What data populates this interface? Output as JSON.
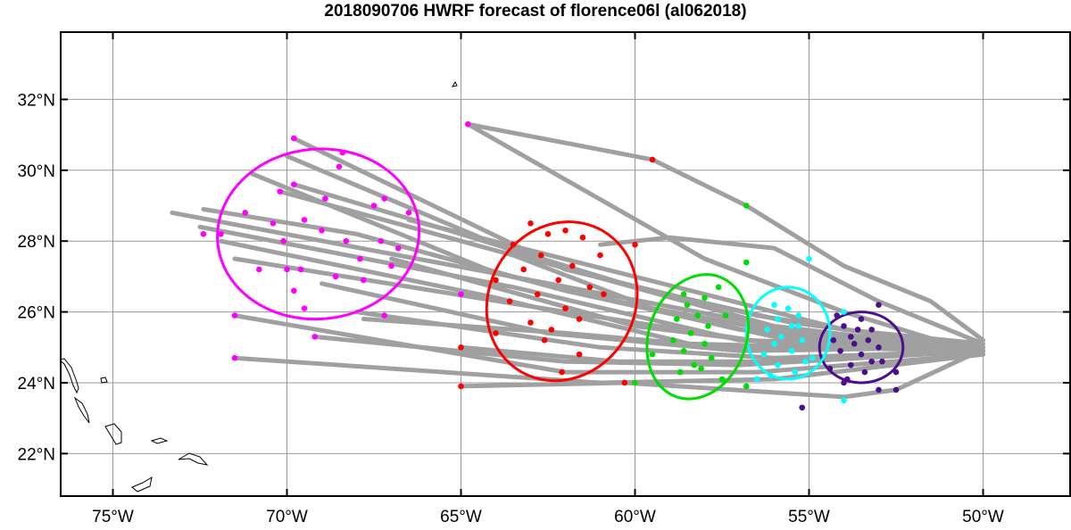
{
  "title": "2018090706 HWRF forecast of florence06l (al062018)",
  "map": {
    "lon_range": [
      -76.5,
      -47.5
    ],
    "lat_range": [
      20.8,
      33.9
    ],
    "grid_lons": [
      -75,
      -70,
      -65,
      -60,
      -55,
      -50
    ],
    "grid_lats": [
      22,
      24,
      26,
      28,
      30,
      32
    ],
    "x_tick_labels": [
      "75°W",
      "70°W",
      "65°W",
      "60°W",
      "55°W",
      "50°W"
    ],
    "y_tick_labels": [
      "22°N",
      "24°N",
      "26°N",
      "28°N",
      "30°N",
      "32°N"
    ],
    "colors": {
      "track": "#a0a0a0",
      "grid": "#999999",
      "coast": "#000000",
      "day1": "#4b0f8c",
      "day2": "#00ffff",
      "day3": "#00dd00",
      "day4": "#ff0000",
      "day5": "#ff00ff"
    }
  },
  "chart_data": {
    "type": "scatter",
    "description_units": "longitude (deg, negative = W), latitude (deg N)",
    "ellipses": [
      {
        "name": "day1",
        "color": "#4b0f8c",
        "center": [
          -53.5,
          25.0
        ],
        "radii": [
          1.2,
          1.0
        ],
        "angle": 0
      },
      {
        "name": "day2",
        "color": "#00ffff",
        "center": [
          -55.6,
          25.4
        ],
        "radii": [
          1.2,
          1.3
        ],
        "angle": 0
      },
      {
        "name": "day3",
        "color": "#00dd00",
        "center": [
          -58.2,
          25.3
        ],
        "radii": [
          1.4,
          1.8
        ],
        "angle": 20
      },
      {
        "name": "day4",
        "color": "#ff0000",
        "center": [
          -62.1,
          26.3
        ],
        "radii": [
          2.1,
          2.3
        ],
        "angle": 30
      },
      {
        "name": "day5",
        "color": "#ff00ff",
        "center": [
          -69.1,
          28.2
        ],
        "radii": [
          2.9,
          2.4
        ],
        "angle": -5
      }
    ],
    "tracks": [
      [
        [
          -50.0,
          24.8
        ],
        [
          -54.0,
          26.0
        ],
        [
          -58.0,
          27.5
        ],
        [
          -64.8,
          31.3
        ]
      ],
      [
        [
          -50.0,
          24.9
        ],
        [
          -56.5,
          25.9
        ],
        [
          -62.0,
          27.2
        ],
        [
          -69.8,
          30.9
        ]
      ],
      [
        [
          -50.0,
          24.9
        ],
        [
          -56.0,
          25.6
        ],
        [
          -63.0,
          27.5
        ],
        [
          -70.0,
          30.4
        ]
      ],
      [
        [
          -50.0,
          24.9
        ],
        [
          -57.0,
          25.5
        ],
        [
          -64.0,
          27.1
        ],
        [
          -71.0,
          29.9
        ]
      ],
      [
        [
          -50.0,
          24.9
        ],
        [
          -55.0,
          25.4
        ],
        [
          -63.0,
          26.9
        ],
        [
          -73.3,
          28.8
        ]
      ],
      [
        [
          -50.0,
          25.0
        ],
        [
          -57.0,
          25.2
        ],
        [
          -63.5,
          26.7
        ],
        [
          -72.5,
          28.4
        ]
      ],
      [
        [
          -50.0,
          25.0
        ],
        [
          -58.0,
          25.0
        ],
        [
          -64.0,
          26.4
        ],
        [
          -71.9,
          28.0
        ]
      ],
      [
        [
          -50.0,
          25.0
        ],
        [
          -56.0,
          25.1
        ],
        [
          -62.0,
          26.0
        ],
        [
          -71.5,
          27.5
        ]
      ],
      [
        [
          -50.0,
          25.0
        ],
        [
          -57.0,
          24.9
        ],
        [
          -62.5,
          25.4
        ],
        [
          -69.0,
          26.8
        ]
      ],
      [
        [
          -50.0,
          24.9
        ],
        [
          -56.0,
          24.7
        ],
        [
          -61.0,
          25.0
        ],
        [
          -68.0,
          26.0
        ]
      ],
      [
        [
          -50.0,
          24.9
        ],
        [
          -57.0,
          24.5
        ],
        [
          -62.0,
          24.6
        ],
        [
          -69.2,
          25.3
        ]
      ],
      [
        [
          -50.0,
          24.8
        ],
        [
          -56.5,
          24.3
        ],
        [
          -62.0,
          24.3
        ],
        [
          -71.5,
          25.9
        ]
      ],
      [
        [
          -50.0,
          24.8
        ],
        [
          -56.0,
          24.1
        ],
        [
          -61.0,
          24.0
        ],
        [
          -71.5,
          24.7
        ]
      ],
      [
        [
          -50.1,
          24.9
        ],
        [
          -52.5,
          23.8
        ],
        [
          -54.0,
          23.6
        ],
        [
          -60.3,
          24.0
        ],
        [
          -65.0,
          23.9
        ]
      ],
      [
        [
          -50.0,
          25.2
        ],
        [
          -51.5,
          26.3
        ],
        [
          -54.0,
          27.3
        ],
        [
          -56.8,
          29.0
        ],
        [
          -59.5,
          30.3
        ],
        [
          -64.8,
          31.3
        ]
      ],
      [
        [
          -50.0,
          25.1
        ],
        [
          -53.0,
          26.3
        ],
        [
          -56.0,
          27.8
        ],
        [
          -59.0,
          28.1
        ],
        [
          -61.0,
          27.9
        ]
      ],
      [
        [
          -50.0,
          25.1
        ],
        [
          -54.0,
          25.5
        ],
        [
          -58.0,
          26.5
        ],
        [
          -66.5,
          28.6
        ]
      ],
      [
        [
          -50.0,
          24.9
        ],
        [
          -55.0,
          25.0
        ],
        [
          -60.0,
          25.6
        ],
        [
          -67.0,
          27.5
        ]
      ],
      [
        [
          -50.0,
          24.9
        ],
        [
          -55.5,
          24.6
        ],
        [
          -60.5,
          24.6
        ],
        [
          -65.0,
          25.0
        ]
      ],
      [
        [
          -50.0,
          25.0
        ],
        [
          -56.0,
          25.3
        ],
        [
          -62.0,
          26.6
        ],
        [
          -68.0,
          28.2
        ],
        [
          -72.4,
          28.9
        ]
      ],
      [
        [
          -50.0,
          25.0
        ],
        [
          -54.5,
          25.2
        ],
        [
          -59.5,
          26.1
        ],
        [
          -63.5,
          27.6
        ],
        [
          -70.2,
          29.4
        ]
      ],
      [
        [
          -50.0,
          25.0
        ],
        [
          -55.5,
          25.7
        ],
        [
          -60.0,
          26.7
        ],
        [
          -65.0,
          28.2
        ],
        [
          -69.8,
          29.6
        ]
      ],
      [
        [
          -50.0,
          25.0
        ],
        [
          -54.5,
          25.0
        ],
        [
          -58.5,
          25.1
        ],
        [
          -62.0,
          25.4
        ],
        [
          -67.8,
          25.8
        ]
      ]
    ],
    "points": {
      "day1": [
        [
          -53.0,
          26.2
        ],
        [
          -53.5,
          25.8
        ],
        [
          -54.0,
          25.6
        ],
        [
          -53.2,
          25.5
        ],
        [
          -53.8,
          25.3
        ],
        [
          -53.3,
          25.2
        ],
        [
          -54.3,
          25.2
        ],
        [
          -53.7,
          25.1
        ],
        [
          -53.0,
          25.0
        ],
        [
          -54.1,
          24.9
        ],
        [
          -53.5,
          24.8
        ],
        [
          -53.2,
          24.6
        ],
        [
          -53.8,
          24.5
        ],
        [
          -54.4,
          24.4
        ],
        [
          -53.4,
          24.3
        ],
        [
          -53.9,
          24.1
        ],
        [
          -52.5,
          24.3
        ],
        [
          -52.5,
          23.8
        ],
        [
          -54.0,
          24.0
        ],
        [
          -55.2,
          23.3
        ],
        [
          -53.0,
          23.8
        ],
        [
          -52.9,
          24.6
        ],
        [
          -53.6,
          25.5
        ],
        [
          -54.2,
          25.9
        ]
      ],
      "day2": [
        [
          -55.0,
          27.5
        ],
        [
          -56.0,
          26.2
        ],
        [
          -55.6,
          26.1
        ],
        [
          -55.3,
          25.9
        ],
        [
          -55.9,
          25.8
        ],
        [
          -55.5,
          25.6
        ],
        [
          -56.2,
          25.5
        ],
        [
          -55.8,
          25.3
        ],
        [
          -55.2,
          25.2
        ],
        [
          -56.0,
          25.1
        ],
        [
          -55.5,
          24.9
        ],
        [
          -56.3,
          24.8
        ],
        [
          -55.1,
          24.6
        ],
        [
          -55.9,
          24.5
        ],
        [
          -55.4,
          24.3
        ],
        [
          -56.1,
          24.2
        ],
        [
          -54.9,
          24.7
        ],
        [
          -54.0,
          26.0
        ],
        [
          -54.0,
          23.5
        ],
        [
          -56.5,
          24.1
        ],
        [
          -55.3,
          25.6
        ]
      ],
      "day3": [
        [
          -56.8,
          29.0
        ],
        [
          -56.8,
          27.4
        ],
        [
          -57.6,
          26.7
        ],
        [
          -58.0,
          26.4
        ],
        [
          -58.5,
          26.2
        ],
        [
          -58.2,
          25.9
        ],
        [
          -58.8,
          25.8
        ],
        [
          -57.9,
          25.6
        ],
        [
          -58.4,
          25.4
        ],
        [
          -58.9,
          25.2
        ],
        [
          -58.0,
          25.1
        ],
        [
          -58.6,
          24.9
        ],
        [
          -57.8,
          24.7
        ],
        [
          -58.3,
          24.5
        ],
        [
          -58.7,
          24.3
        ],
        [
          -57.5,
          24.1
        ],
        [
          -58.1,
          24.4
        ],
        [
          -59.5,
          24.8
        ],
        [
          -60.0,
          24.0
        ],
        [
          -56.8,
          23.9
        ],
        [
          -58.6,
          26.5
        ],
        [
          -57.4,
          25.9
        ]
      ],
      "day4": [
        [
          -59.5,
          30.3
        ],
        [
          -60.0,
          27.9
        ],
        [
          -62.0,
          28.3
        ],
        [
          -62.5,
          28.2
        ],
        [
          -63.0,
          28.5
        ],
        [
          -63.5,
          27.9
        ],
        [
          -61.5,
          28.1
        ],
        [
          -62.7,
          27.6
        ],
        [
          -61.8,
          27.3
        ],
        [
          -63.2,
          27.2
        ],
        [
          -62.2,
          26.9
        ],
        [
          -64.0,
          26.9
        ],
        [
          -61.3,
          26.7
        ],
        [
          -62.8,
          26.5
        ],
        [
          -63.6,
          26.3
        ],
        [
          -62.0,
          26.1
        ],
        [
          -61.6,
          25.8
        ],
        [
          -63.0,
          25.7
        ],
        [
          -62.4,
          25.5
        ],
        [
          -64.0,
          25.4
        ],
        [
          -62.6,
          25.2
        ],
        [
          -61.6,
          24.8
        ],
        [
          -60.3,
          24.0
        ],
        [
          -65.0,
          25.0
        ],
        [
          -65.0,
          23.9
        ],
        [
          -62.1,
          24.3
        ],
        [
          -60.9,
          26.5
        ],
        [
          -61.0,
          27.6
        ]
      ],
      "day5": [
        [
          -64.8,
          31.3
        ],
        [
          -69.8,
          30.9
        ],
        [
          -68.4,
          30.5
        ],
        [
          -68.5,
          30.1
        ],
        [
          -70.2,
          29.4
        ],
        [
          -69.8,
          29.6
        ],
        [
          -68.9,
          29.2
        ],
        [
          -67.2,
          29.2
        ],
        [
          -66.5,
          28.8
        ],
        [
          -67.5,
          29.0
        ],
        [
          -71.2,
          28.8
        ],
        [
          -69.5,
          28.6
        ],
        [
          -70.4,
          28.5
        ],
        [
          -69.0,
          28.3
        ],
        [
          -72.4,
          28.2
        ],
        [
          -71.9,
          28.2
        ],
        [
          -70.1,
          28.0
        ],
        [
          -68.3,
          28.0
        ],
        [
          -67.3,
          28.0
        ],
        [
          -66.8,
          27.8
        ],
        [
          -67.9,
          27.5
        ],
        [
          -68.6,
          27.0
        ],
        [
          -70.8,
          27.2
        ],
        [
          -70.0,
          27.2
        ],
        [
          -69.6,
          27.2
        ],
        [
          -67.0,
          27.3
        ],
        [
          -67.8,
          26.9
        ],
        [
          -69.8,
          26.6
        ],
        [
          -69.5,
          26.1
        ],
        [
          -69.2,
          25.3
        ],
        [
          -67.2,
          25.9
        ],
        [
          -65.0,
          26.5
        ],
        [
          -71.5,
          25.9
        ],
        [
          -71.5,
          24.7
        ]
      ]
    }
  }
}
